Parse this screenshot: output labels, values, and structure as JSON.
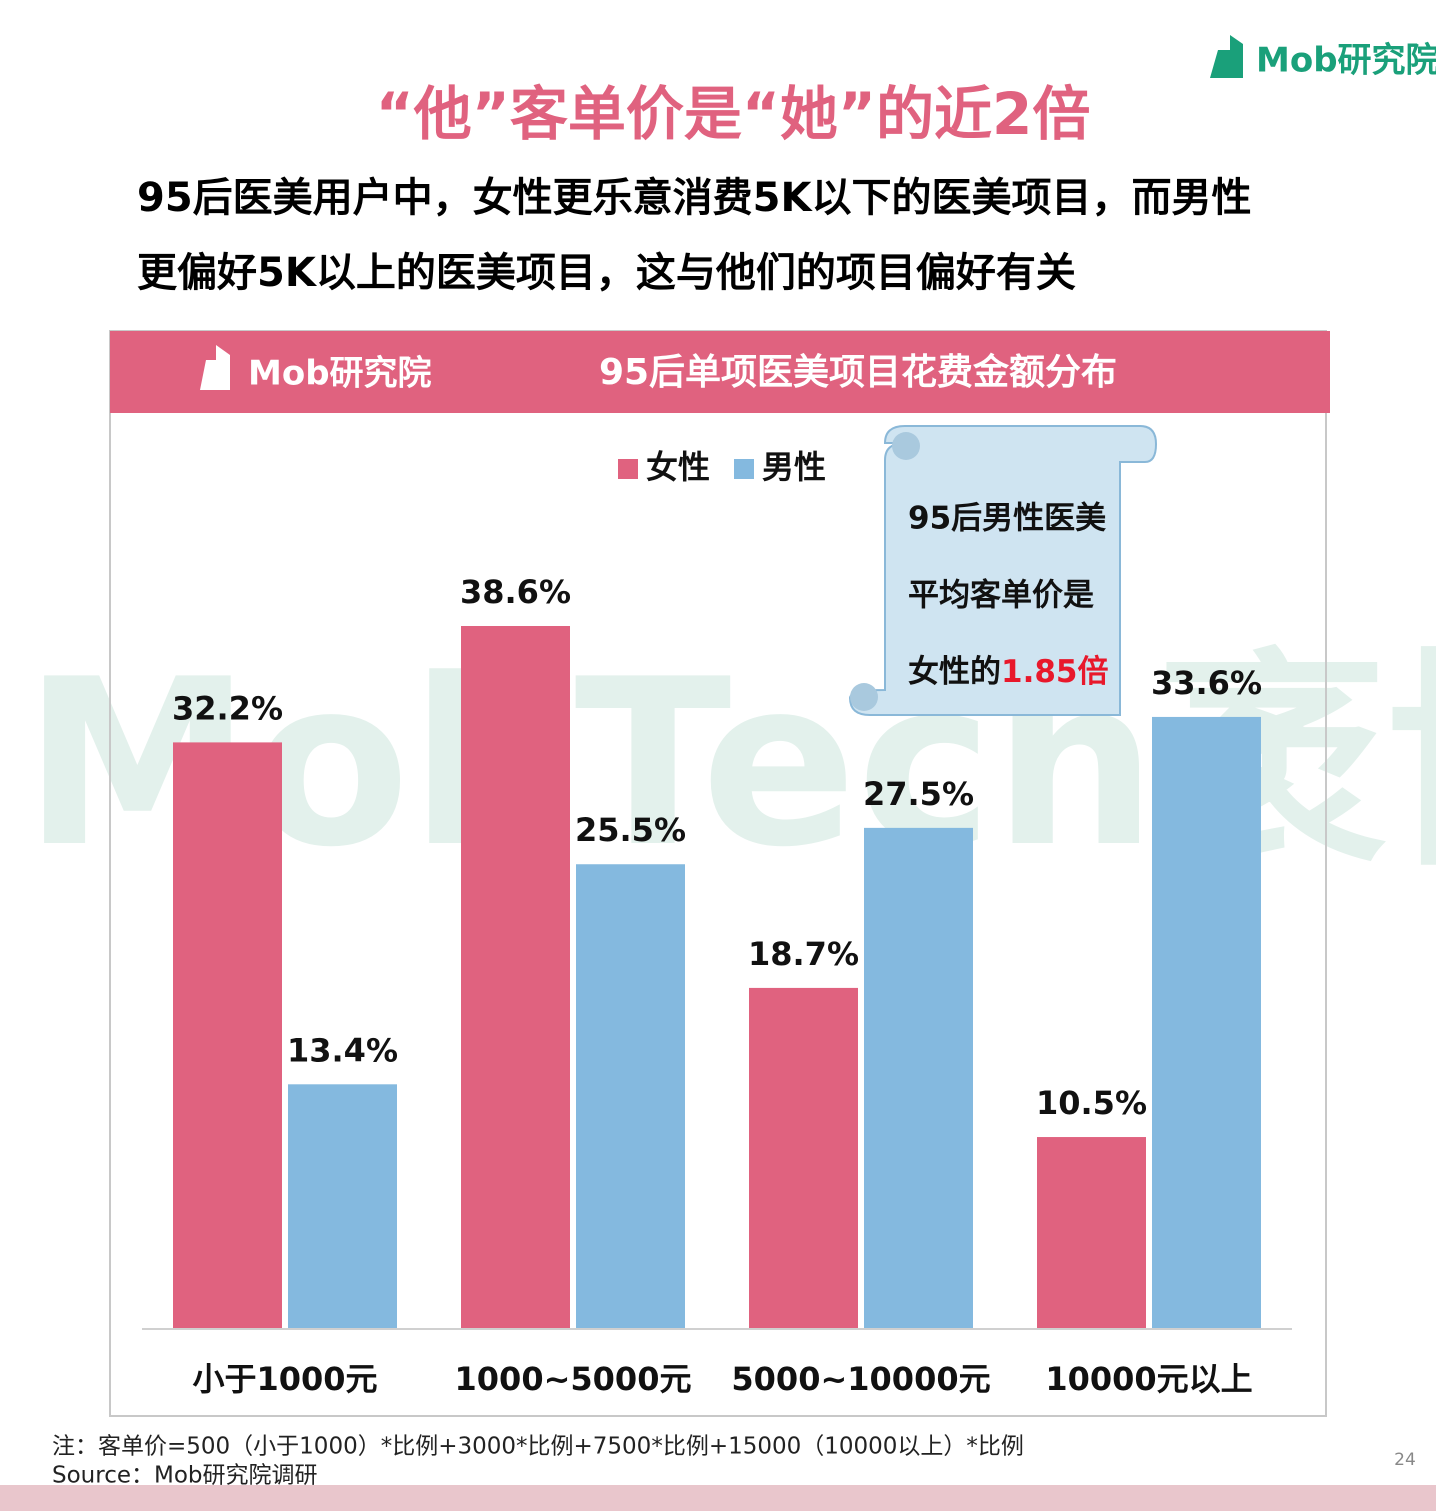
{
  "logo": "Mob研究院",
  "title": "“他”客单价是“她”的近2倍",
  "subtitle": [
    "95后医美用户中，女性更乐意消费5K以下的医美项目，而男性",
    "更偏好5K以上的医美项目，这与他们的项目偏好有关"
  ],
  "callout": {
    "lines": [
      "95后男性医美",
      "平均客单价是",
      "女性的"
    ],
    "highlight": "1.85倍"
  },
  "watermark": "MobTech袤博",
  "note": "注：客单价=500（小于1000）*比例+3000*比例+7500*比例+15000（10000以上）*比例",
  "source": "Source：Mob研究院调研",
  "page_number": "24",
  "chart_data": {
    "type": "bar",
    "header_logo": "Mob研究院",
    "title": "95后单项医美项目花费金额分布",
    "categories": [
      "小于1000元",
      "1000~5000元",
      "5000~10000元",
      "10000元以上"
    ],
    "series": [
      {
        "name": "女性",
        "color": "#e0627f",
        "values": [
          32.2,
          38.6,
          18.7,
          10.5
        ],
        "value_labels": [
          "32.2%",
          "38.6%",
          "18.7%",
          "10.5%"
        ]
      },
      {
        "name": "男性",
        "color": "#84b9df",
        "values": [
          13.4,
          25.5,
          27.5,
          33.6
        ],
        "value_labels": [
          "13.4%",
          "25.5%",
          "27.5%",
          "33.6%"
        ]
      }
    ]
  }
}
